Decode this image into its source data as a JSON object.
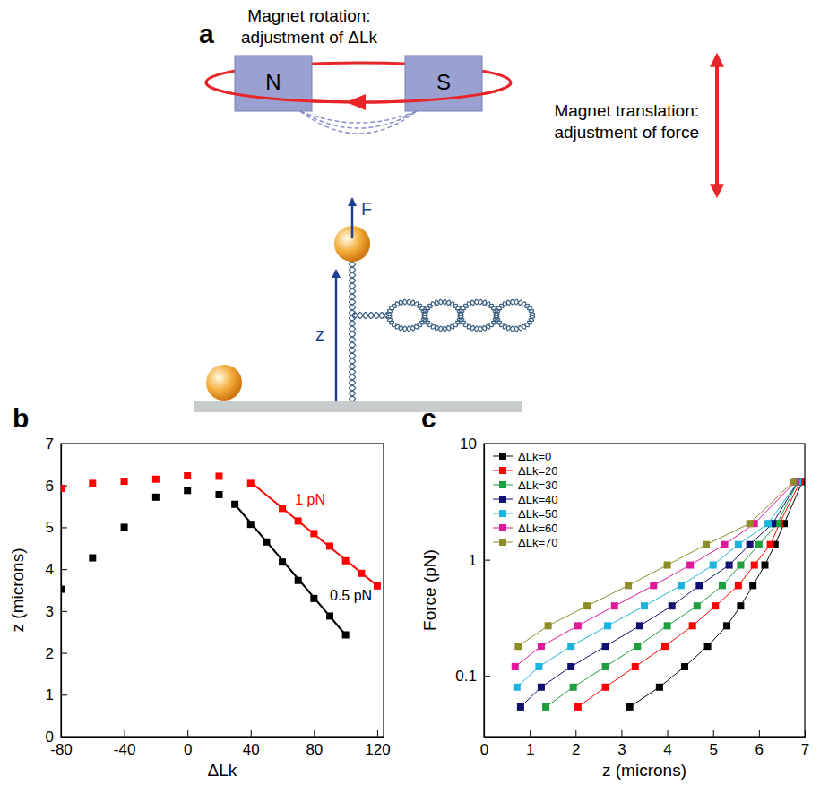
{
  "diagram": {
    "panel": "a",
    "magnet_rotation": [
      "Magnet rotation:",
      "adjustment of ΔLk"
    ],
    "magnet_translation": [
      "Magnet translation:",
      "adjustment of force"
    ],
    "magnets": [
      "N",
      "S"
    ],
    "force_label": "F",
    "extension_label": "z"
  },
  "chart_data": [
    {
      "type": "scatter",
      "panel": "b",
      "xlabel": "ΔLk",
      "ylabel": "z (microns)",
      "xlim": [
        -80,
        124
      ],
      "ylim": [
        0,
        7
      ],
      "xticks": [
        -80,
        -40,
        0,
        40,
        80,
        120
      ],
      "yticks": [
        0,
        1,
        2,
        3,
        4,
        5,
        6,
        7
      ],
      "marker": "square",
      "line_style": "none",
      "series": [
        {
          "color": "#ff0000",
          "x": [
            -80,
            -60,
            -40,
            -20,
            0,
            20,
            40,
            60,
            70,
            80,
            90,
            100,
            110,
            120
          ],
          "values": [
            5.93,
            6.05,
            6.1,
            6.15,
            6.23,
            6.22,
            6.05,
            5.45,
            5.15,
            4.85,
            4.55,
            4.2,
            3.9,
            3.6
          ],
          "fit": {
            "x": [
              40,
              120
            ],
            "values": [
              6.08,
              3.6
            ]
          }
        },
        {
          "color": "#000000",
          "x": [
            -80,
            -60,
            -40,
            -20,
            0,
            20,
            30,
            40,
            50,
            60,
            70,
            80,
            90,
            100
          ],
          "values": [
            3.52,
            4.27,
            5.0,
            5.72,
            5.88,
            5.78,
            5.55,
            5.07,
            4.65,
            4.17,
            3.73,
            3.3,
            2.88,
            2.43
          ],
          "fit": {
            "x": [
              30,
              100
            ],
            "values": [
              5.55,
              2.43
            ]
          }
        }
      ],
      "annotations": [
        {
          "text": "1 pN",
          "x": 68,
          "y": 5.55,
          "color": "#ff0000"
        },
        {
          "text": "0.5 pN",
          "x": 90,
          "y": 3.25,
          "color": "#000000"
        }
      ]
    },
    {
      "type": "line",
      "panel": "c",
      "xlabel": "z (microns)",
      "ylabel": "Force (pN)",
      "xlim": [
        0,
        7
      ],
      "ylim": [
        0.03,
        10
      ],
      "log": "y",
      "xticks": [
        0,
        1,
        2,
        3,
        4,
        5,
        6,
        7
      ],
      "yticks": [
        0.1,
        1,
        10
      ],
      "legend": "upper left",
      "marker": "square",
      "line_style": "solid",
      "series": [
        {
          "name": "ΔLk=0",
          "color": "#000000",
          "x": [
            3.18,
            3.83,
            4.38,
            4.88,
            5.3,
            5.6,
            5.87,
            6.13,
            6.35,
            6.55,
            6.95
          ],
          "values": [
            0.054,
            0.08,
            0.12,
            0.18,
            0.27,
            0.4,
            0.6,
            0.9,
            1.35,
            2.05,
            4.7
          ]
        },
        {
          "name": "ΔLk=20",
          "color": "#ff0000",
          "x": [
            2.05,
            2.65,
            3.3,
            3.95,
            4.55,
            5.05,
            5.55,
            5.9,
            6.25,
            6.45,
            6.9
          ],
          "values": [
            0.054,
            0.08,
            0.12,
            0.18,
            0.27,
            0.4,
            0.6,
            0.9,
            1.35,
            2.05,
            4.7
          ]
        },
        {
          "name": "ΔLk=30",
          "color": "#1e9e3c",
          "x": [
            1.35,
            1.95,
            2.65,
            3.35,
            4.0,
            4.65,
            5.2,
            5.6,
            6.0,
            6.4,
            6.85
          ],
          "values": [
            0.054,
            0.08,
            0.12,
            0.18,
            0.27,
            0.4,
            0.6,
            0.9,
            1.35,
            2.05,
            4.7
          ]
        },
        {
          "name": "ΔLk=40",
          "color": "#10106e",
          "x": [
            0.8,
            1.25,
            1.9,
            2.65,
            3.4,
            4.1,
            4.7,
            5.35,
            5.8,
            6.3,
            6.85
          ],
          "values": [
            0.054,
            0.08,
            0.12,
            0.18,
            0.27,
            0.4,
            0.6,
            0.9,
            1.35,
            2.05,
            4.7
          ]
        },
        {
          "name": "ΔLk=50",
          "color": "#1ab4dc",
          "x": [
            0.72,
            1.2,
            1.9,
            2.7,
            3.5,
            4.3,
            5.0,
            5.55,
            6.2,
            6.85
          ],
          "values": [
            0.08,
            0.12,
            0.18,
            0.27,
            0.4,
            0.6,
            0.9,
            1.35,
            2.05,
            4.7
          ]
        },
        {
          "name": "ΔLk=60",
          "color": "#e0189c",
          "x": [
            0.68,
            1.25,
            2.05,
            2.85,
            3.7,
            4.5,
            5.25,
            5.9,
            6.8
          ],
          "values": [
            0.12,
            0.18,
            0.27,
            0.4,
            0.6,
            0.9,
            1.35,
            2.05,
            4.7
          ]
        },
        {
          "name": "ΔLk=70",
          "color": "#8c8c28",
          "x": [
            0.75,
            1.4,
            2.25,
            3.15,
            4.0,
            4.85,
            5.8,
            6.75
          ],
          "values": [
            0.18,
            0.27,
            0.4,
            0.6,
            0.9,
            1.35,
            2.05,
            4.7
          ]
        }
      ]
    }
  ]
}
